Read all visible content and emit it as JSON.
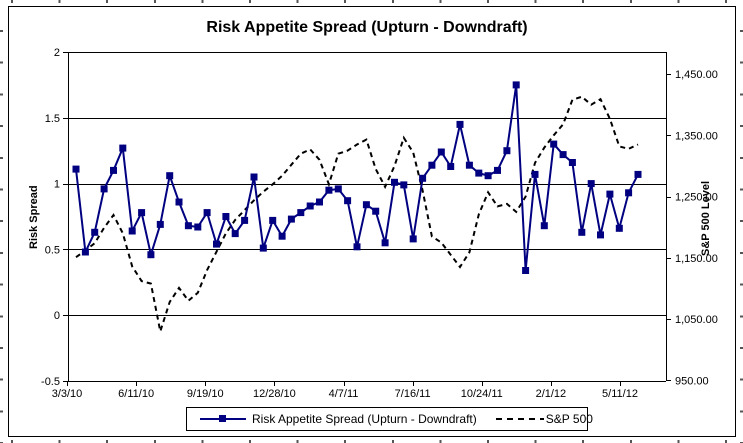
{
  "title": "Risk Appetite Spread (Upturn - Downdraft)",
  "chart_data": {
    "type": "line",
    "title": "Risk Appetite Spread (Upturn - Downdraft)",
    "ylabel_left": "Risk Spread",
    "ylabel_right": "S&P 500 Level",
    "xlabel": "",
    "grid": "horizontal",
    "legend_position": "bottom",
    "x_tick_labels": [
      "3/3/10",
      "6/11/10",
      "9/19/10",
      "12/28/10",
      "4/7/11",
      "7/16/11",
      "10/24/11",
      "2/1/12",
      "5/11/12"
    ],
    "y_left_axis": {
      "min": -0.5,
      "max": 2,
      "tick_values": [
        2,
        1.5,
        1,
        0.5,
        0,
        -0.5
      ],
      "tick_labels": [
        "2",
        "1.5",
        "1",
        "0.5",
        "0",
        "-0.5"
      ]
    },
    "y_right_axis": {
      "min": 950,
      "max": 1450,
      "tick_values": [
        1450,
        1350,
        1250,
        1150,
        1050,
        950
      ],
      "tick_labels": [
        "1,450.00",
        "1,350.00",
        "1,250.00",
        "1,150.00",
        "1,050.00",
        "950.00"
      ]
    },
    "series": [
      {
        "name": "Risk Appetite Spread (Upturn - Downdraft)",
        "axis": "left",
        "color": "#000080",
        "style": "solid",
        "marker": "square",
        "values": [
          1.11,
          0.48,
          0.63,
          0.96,
          1.1,
          1.27,
          0.64,
          0.78,
          0.46,
          0.69,
          1.06,
          0.86,
          0.68,
          0.67,
          0.78,
          0.54,
          0.75,
          0.62,
          0.72,
          1.05,
          0.51,
          0.72,
          0.6,
          0.73,
          0.78,
          0.83,
          0.86,
          0.95,
          0.96,
          0.87,
          0.52,
          0.84,
          0.79,
          0.55,
          1.01,
          0.99,
          0.58,
          1.04,
          1.14,
          1.24,
          1.13,
          1.45,
          1.14,
          1.08,
          1.06,
          1.1,
          1.25,
          1.75,
          0.34,
          1.07,
          0.68,
          1.3,
          1.22,
          1.16,
          0.63,
          1.0,
          0.61,
          0.92,
          0.66,
          0.93,
          1.07
        ]
      },
      {
        "name": "S&P 500",
        "axis": "right",
        "color": "#000000",
        "style": "dashed",
        "marker": "none",
        "values": [
          1151,
          1162,
          1174,
          1199,
          1220,
          1190,
          1136,
          1112,
          1108,
          1030,
          1078,
          1101,
          1080,
          1093,
          1130,
          1160,
          1190,
          1212,
          1228,
          1244,
          1258,
          1270,
          1284,
          1302,
          1320,
          1327,
          1310,
          1270,
          1320,
          1325,
          1335,
          1343,
          1295,
          1266,
          1300,
          1346,
          1322,
          1260,
          1185,
          1175,
          1155,
          1135,
          1159,
          1221,
          1257,
          1234,
          1238,
          1225,
          1250,
          1305,
          1330,
          1350,
          1368,
          1408,
          1413,
          1400,
          1409,
          1377,
          1332,
          1328,
          1335
        ]
      }
    ]
  }
}
